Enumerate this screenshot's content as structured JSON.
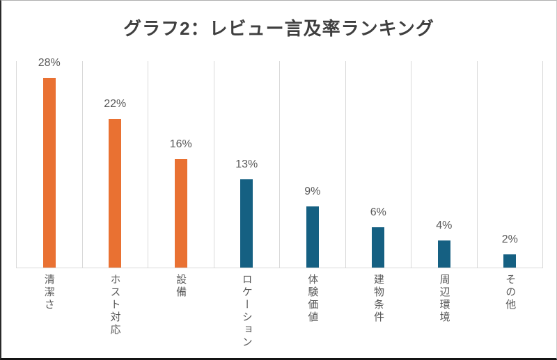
{
  "chart_data": {
    "type": "bar",
    "title": "グラフ2：レビュー言及率ランキング",
    "categories": [
      "清潔さ",
      "ホスト対応",
      "設備",
      "ロケーション",
      "体験価値",
      "建物条件",
      "周辺環境",
      "その他"
    ],
    "values": [
      28,
      22,
      16,
      13,
      9,
      6,
      4,
      2
    ],
    "data_labels": [
      "28%",
      "22%",
      "16%",
      "13%",
      "9%",
      "6%",
      "4%",
      "2%"
    ],
    "bar_colors": [
      "#E97132",
      "#E97132",
      "#E97132",
      "#156082",
      "#156082",
      "#156082",
      "#156082",
      "#156082"
    ],
    "orientation": "vertical",
    "xlabel": "",
    "ylabel": "",
    "ylim": [
      0,
      30
    ],
    "value_axis_visible": false,
    "gridlines": "vertical category separators only",
    "legend": "none",
    "category_label_style": "vertical-japanese",
    "colors": {
      "orange_series": "#E97132",
      "teal_series": "#156082",
      "gridline": "#D9D9D9",
      "axis_line": "#D9D9D9",
      "label_text": "#595959",
      "title_text": "#3F3F3F"
    }
  }
}
